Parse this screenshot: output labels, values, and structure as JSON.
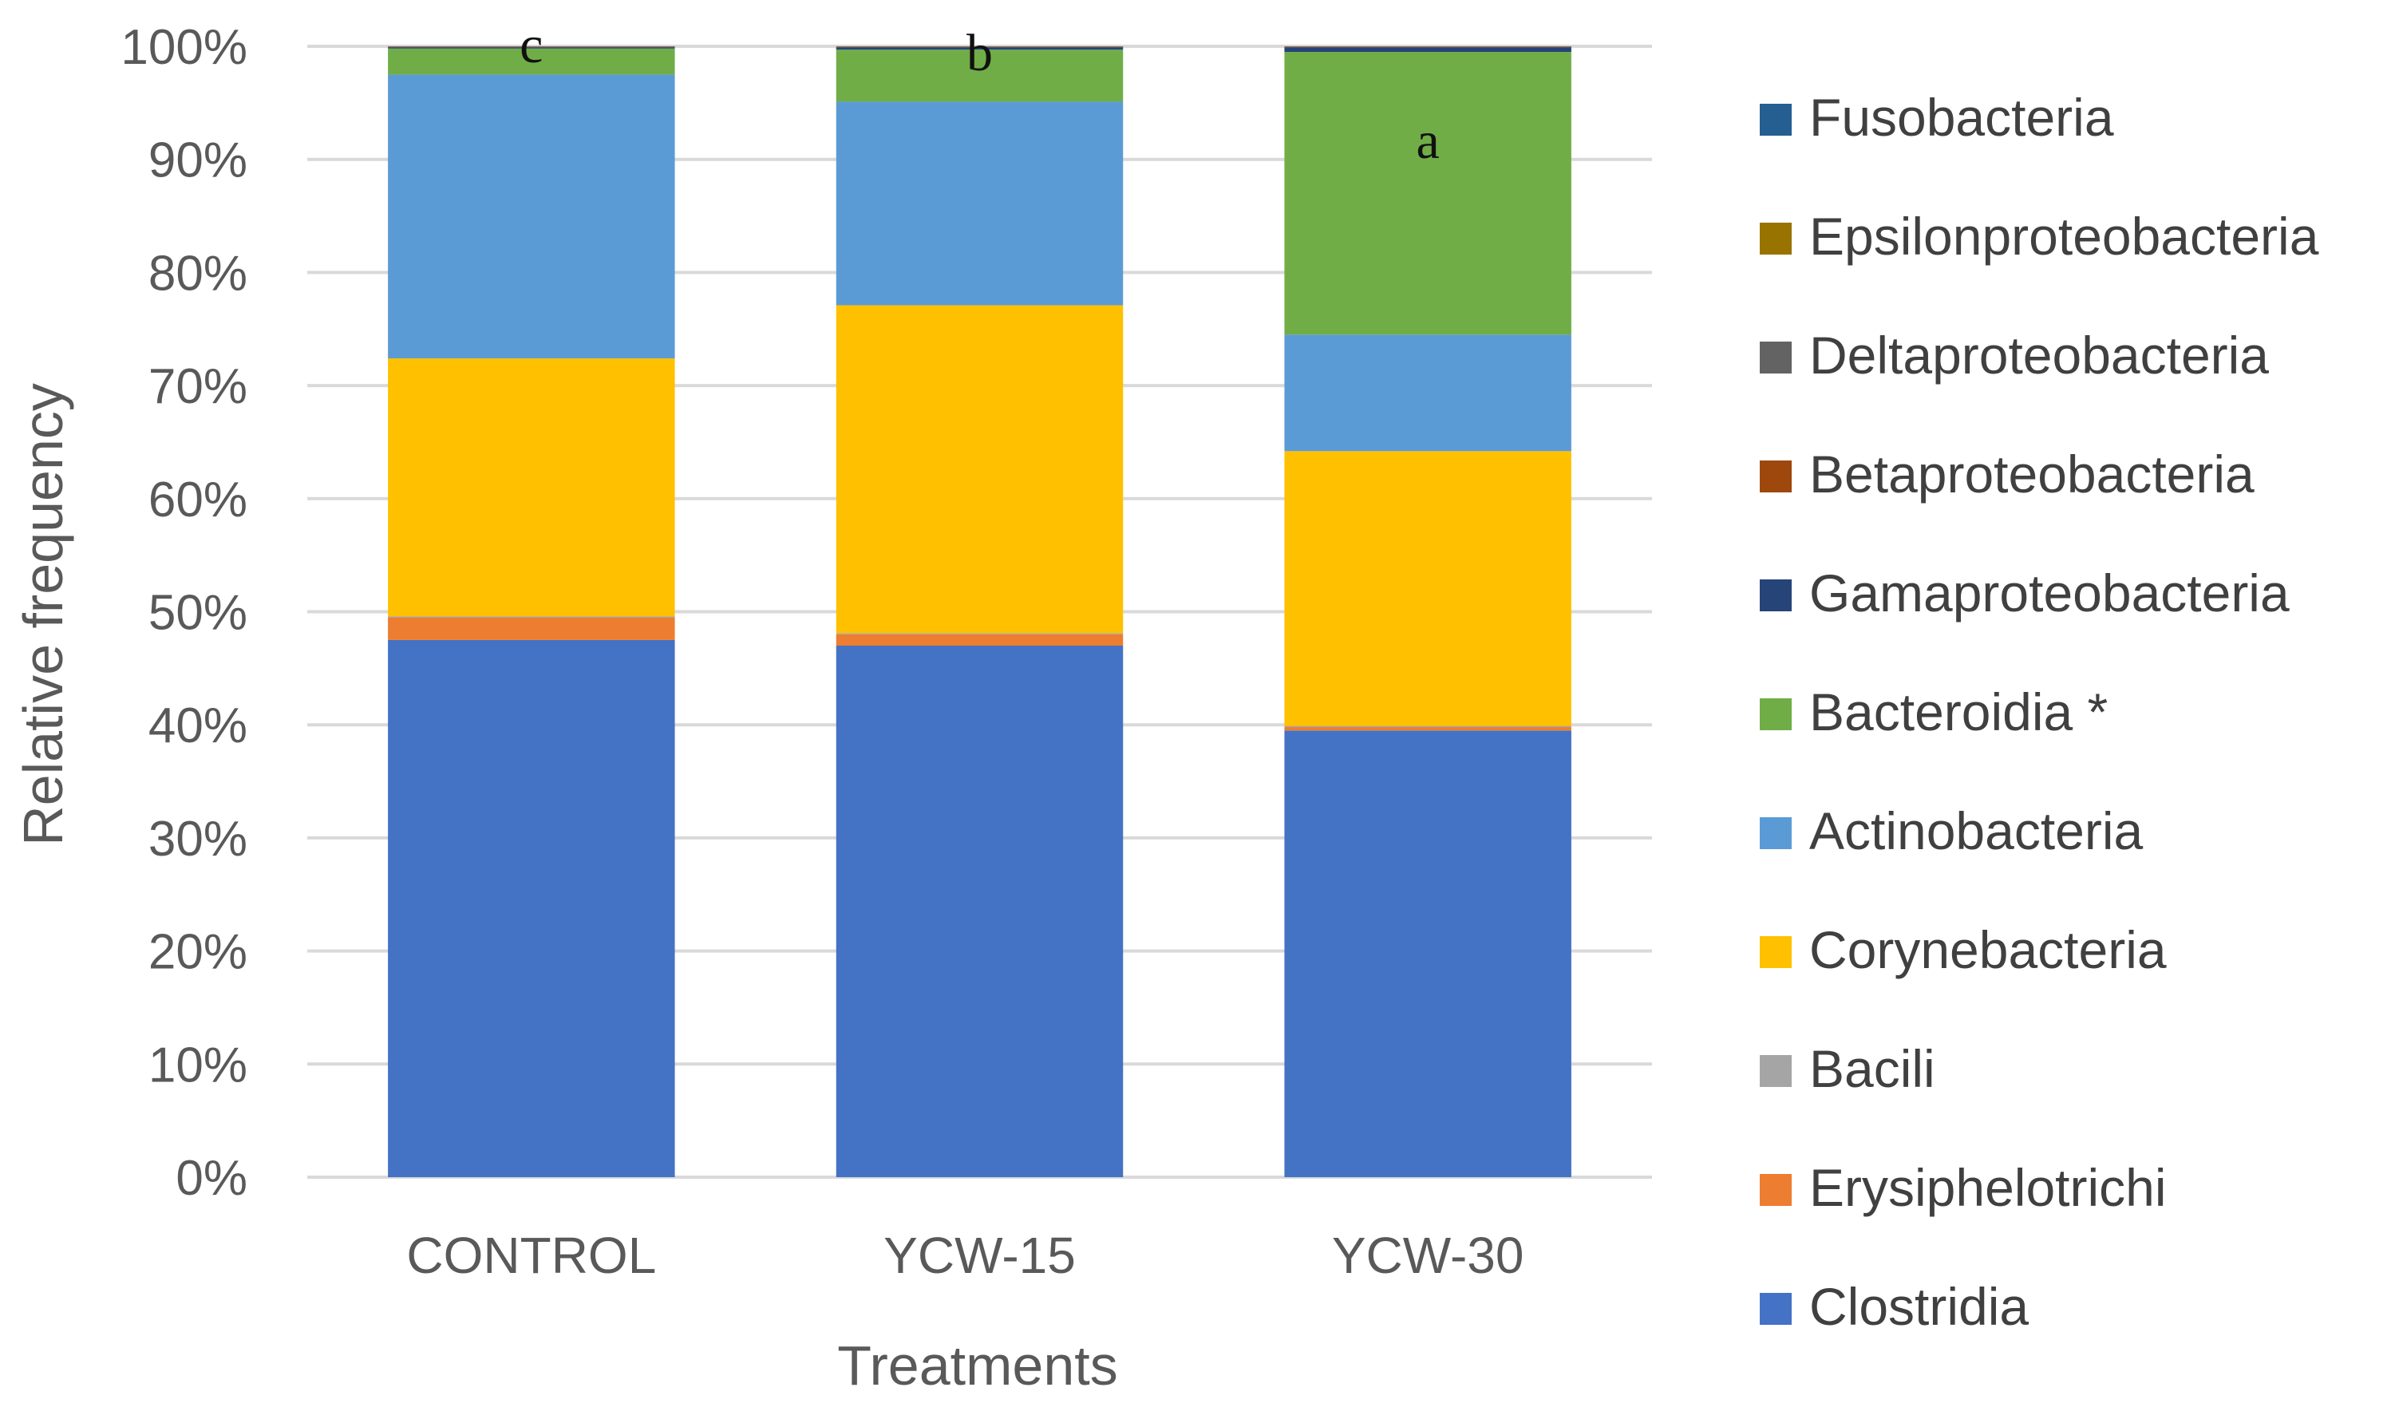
{
  "chart_data": {
    "type": "bar",
    "stacked": true,
    "title": "",
    "xlabel": "Treatments",
    "ylabel": "Relative frequency",
    "ylim": [
      0,
      100
    ],
    "yticks": [
      0,
      10,
      20,
      30,
      40,
      50,
      60,
      70,
      80,
      90,
      100
    ],
    "ytick_labels": [
      "0%",
      "10%",
      "20%",
      "30%",
      "40%",
      "50%",
      "60%",
      "70%",
      "80%",
      "90%",
      "100%"
    ],
    "grid": true,
    "legend_position": "right",
    "categories": [
      "CONTROL",
      "YCW-15",
      "YCW-30"
    ],
    "annotations": [
      "c",
      "b",
      "a"
    ],
    "series": [
      {
        "name": "Clostridia",
        "color": "#4472c4",
        "values": [
          47.5,
          47.0,
          39.5
        ]
      },
      {
        "name": "Erysiphelotrichi",
        "color": "#ed7d31",
        "values": [
          2.0,
          1.0,
          0.3
        ]
      },
      {
        "name": "Bacili",
        "color": "#a5a5a5",
        "values": [
          0.1,
          0.1,
          0.1
        ]
      },
      {
        "name": "Corynebacteria",
        "color": "#ffc000",
        "values": [
          22.8,
          29.0,
          24.3
        ]
      },
      {
        "name": "Actinobacteria",
        "color": "#5b9bd5",
        "values": [
          25.1,
          18.0,
          10.3
        ]
      },
      {
        "name": "Bacteroidia *",
        "color": "#70ad47",
        "values": [
          2.3,
          4.6,
          25.0
        ]
      },
      {
        "name": "Gamaproteobacteria",
        "color": "#264478",
        "values": [
          0.1,
          0.2,
          0.4
        ]
      },
      {
        "name": "Betaproteobacteria",
        "color": "#9e480e",
        "values": [
          0.05,
          0.05,
          0.05
        ]
      },
      {
        "name": "Deltaproteobacteria",
        "color": "#636363",
        "values": [
          0.05,
          0.05,
          0.05
        ]
      },
      {
        "name": "Epsilonproteobacteria",
        "color": "#997300",
        "values": [
          0.0,
          0.0,
          0.0
        ]
      },
      {
        "name": "Fusobacteria",
        "color": "#255e91",
        "values": [
          0.0,
          0.0,
          0.0
        ]
      }
    ]
  }
}
